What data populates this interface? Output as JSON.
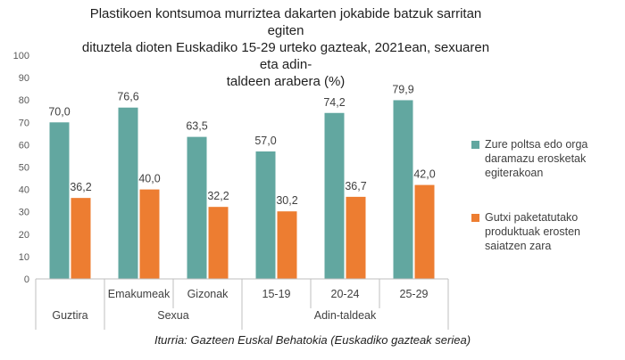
{
  "title": {
    "line1": "Plastikoen kontsumoa murriztea dakarten jokabide batzuk sarritan egiten",
    "line2": "dituztela dioten Euskadiko 15-29 urteko gazteak, 2021ean, sexuaren eta adin-",
    "line3": "taldeen arabera  (%)"
  },
  "source": "Iturria: Gazteen Euskal Behatokia (Euskadiko gazteak seriea)",
  "chart_data": {
    "type": "bar",
    "categories": [
      "Guztira",
      "Emakumeak",
      "Gizonak",
      "15-19",
      "20-24",
      "25-29"
    ],
    "groups": [
      {
        "label": "Sexua",
        "from": 1,
        "to": 2
      },
      {
        "label": "Adin-taldeak",
        "from": 3,
        "to": 5
      }
    ],
    "series": [
      {
        "name": "Zure poltsa edo orga daramazu erosketak egiterakoan",
        "color": "#62a7a0",
        "values": [
          70.0,
          76.6,
          63.5,
          57.0,
          74.2,
          79.9
        ]
      },
      {
        "name": "Gutxi paketatutako produktuak erosten saiatzen zara",
        "color": "#ed7d31",
        "values": [
          36.2,
          40.0,
          32.2,
          30.2,
          36.7,
          42.0
        ]
      }
    ],
    "value_labels": [
      [
        "70,0",
        "76,6",
        "63,5",
        "57,0",
        "74,2",
        "79,9"
      ],
      [
        "36,2",
        "40,0",
        "32,2",
        "30,2",
        "36,7",
        "42,0"
      ]
    ],
    "yticks": [
      "0",
      "10",
      "20",
      "30",
      "40",
      "50",
      "60",
      "70",
      "80",
      "90",
      "100"
    ],
    "ylim": [
      0,
      100
    ],
    "grid": false,
    "legend_position": "right"
  }
}
